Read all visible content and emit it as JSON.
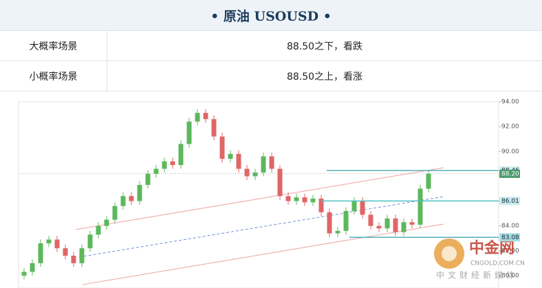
{
  "header": {
    "title": "• 原油 USOUSD •"
  },
  "table": {
    "rows": [
      [
        "大概率场景",
        "88.50之下，看跌"
      ],
      [
        "小概率场景",
        "88.50之上，看涨"
      ]
    ]
  },
  "chart_data": {
    "type": "candlestick",
    "open": [
      80.0,
      80.3,
      81.0,
      82.6,
      82.9,
      82.2,
      81.6,
      81.0,
      82.2,
      83.3,
      84.0,
      84.5,
      85.6,
      86.4,
      86.0,
      87.3,
      88.2,
      88.6,
      89.2,
      88.9,
      90.6,
      92.4,
      93.1,
      92.6,
      91.2,
      89.4,
      89.8,
      88.6,
      88.0,
      88.3,
      89.6,
      88.6,
      86.4,
      86.0,
      86.3,
      85.9,
      86.2,
      85.1,
      83.4,
      83.6,
      85.2,
      86.0,
      84.9,
      84.0,
      83.8,
      84.6,
      83.5,
      84.3,
      84.1,
      87.0
    ],
    "high": [
      80.6,
      81.3,
      82.9,
      83.2,
      83.2,
      82.5,
      81.9,
      82.5,
      83.6,
      84.3,
      84.8,
      85.9,
      86.7,
      86.7,
      87.6,
      88.5,
      88.9,
      89.5,
      89.5,
      90.9,
      92.7,
      93.4,
      93.4,
      92.9,
      91.5,
      90.1,
      90.1,
      88.9,
      88.6,
      89.9,
      89.9,
      88.9,
      86.7,
      86.6,
      86.6,
      86.5,
      86.5,
      85.4,
      83.9,
      85.5,
      86.3,
      86.3,
      85.2,
      84.3,
      84.9,
      84.9,
      84.6,
      84.6,
      87.3,
      88.5
    ],
    "low": [
      79.7,
      80.0,
      80.7,
      82.3,
      81.9,
      81.3,
      80.7,
      80.7,
      81.9,
      83.0,
      83.7,
      84.2,
      85.3,
      85.7,
      85.7,
      87.0,
      87.9,
      88.3,
      88.6,
      88.6,
      90.3,
      92.1,
      92.3,
      90.9,
      89.1,
      89.1,
      88.3,
      87.7,
      87.7,
      88.0,
      88.3,
      86.1,
      85.7,
      85.7,
      85.6,
      85.6,
      84.8,
      83.1,
      83.1,
      83.3,
      84.9,
      84.6,
      83.7,
      83.5,
      83.5,
      83.2,
      83.2,
      83.8,
      83.8,
      86.7
    ],
    "close": [
      80.3,
      81.0,
      82.6,
      82.9,
      82.2,
      81.6,
      81.0,
      82.2,
      83.3,
      84.0,
      84.5,
      85.6,
      86.4,
      86.0,
      87.3,
      88.2,
      88.6,
      89.2,
      88.9,
      90.6,
      92.4,
      93.1,
      92.6,
      91.2,
      89.4,
      89.8,
      88.6,
      88.0,
      88.3,
      89.6,
      88.6,
      86.4,
      86.0,
      86.3,
      85.9,
      86.2,
      85.1,
      83.4,
      83.6,
      85.2,
      86.0,
      84.9,
      84.0,
      83.8,
      84.6,
      83.5,
      84.3,
      84.1,
      87.0,
      88.2
    ],
    "up_color": "#5cb85c",
    "down_color": "#e06666",
    "ylim": [
      79,
      94
    ],
    "yticks": [
      {
        "value": 94,
        "label": "94.00"
      },
      {
        "value": 92,
        "label": "92.00"
      },
      {
        "value": 90,
        "label": "90.00"
      },
      {
        "value": 88,
        "label": "88.00"
      },
      {
        "value": 86,
        "label": "86.00"
      },
      {
        "value": 84,
        "label": "84.00"
      },
      {
        "value": 82,
        "label": "82.00"
      },
      {
        "value": 80,
        "label": "80.00"
      }
    ],
    "levels": [
      {
        "value": 88.46,
        "color": "#5aaeb0",
        "box": "#d4eded"
      },
      {
        "value": 88.2,
        "label": "88.20",
        "color": "#999999",
        "box": "#4c9c6e"
      },
      {
        "value": 86.01,
        "color": "#4fbfc6",
        "box": "#c9ecee"
      },
      {
        "value": 83.08,
        "color": "#4fb0b8",
        "box": "#a9dde2"
      }
    ],
    "watermark": [
      "中金网",
      "CNGOLD.COM.CN",
      "中文财经新媒体"
    ]
  }
}
